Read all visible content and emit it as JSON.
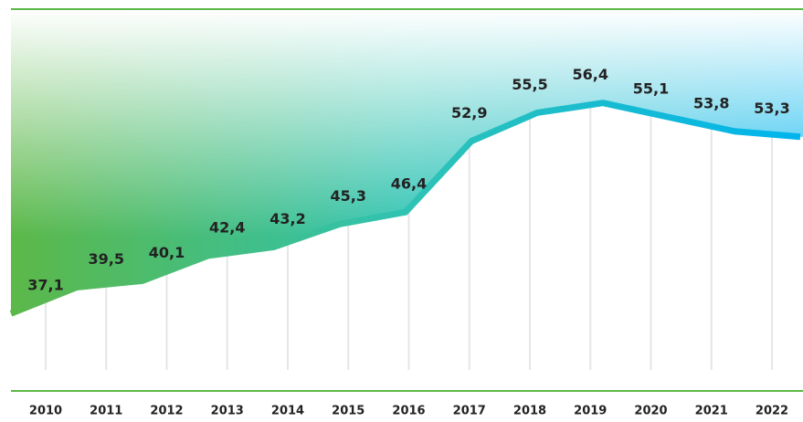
{
  "chart_data": {
    "type": "area-line",
    "categories": [
      "2010",
      "2011",
      "2012",
      "2013",
      "2014",
      "2015",
      "2016",
      "2017",
      "2018",
      "2019",
      "2020",
      "2021",
      "2022"
    ],
    "values": [
      37.1,
      39.5,
      40.1,
      42.4,
      43.2,
      45.3,
      46.4,
      52.9,
      55.5,
      56.4,
      55.1,
      53.8,
      53.3
    ],
    "value_labels": [
      "37,1",
      "39,5",
      "40,1",
      "42,4",
      "43,2",
      "45,3",
      "46,4",
      "52,9",
      "55,5",
      "56,4",
      "55,1",
      "53,8",
      "53,3"
    ],
    "ylim": [
      30,
      65
    ],
    "colors": [
      "#5cb848",
      "#2fc3b3",
      "#00b4ee"
    ]
  }
}
